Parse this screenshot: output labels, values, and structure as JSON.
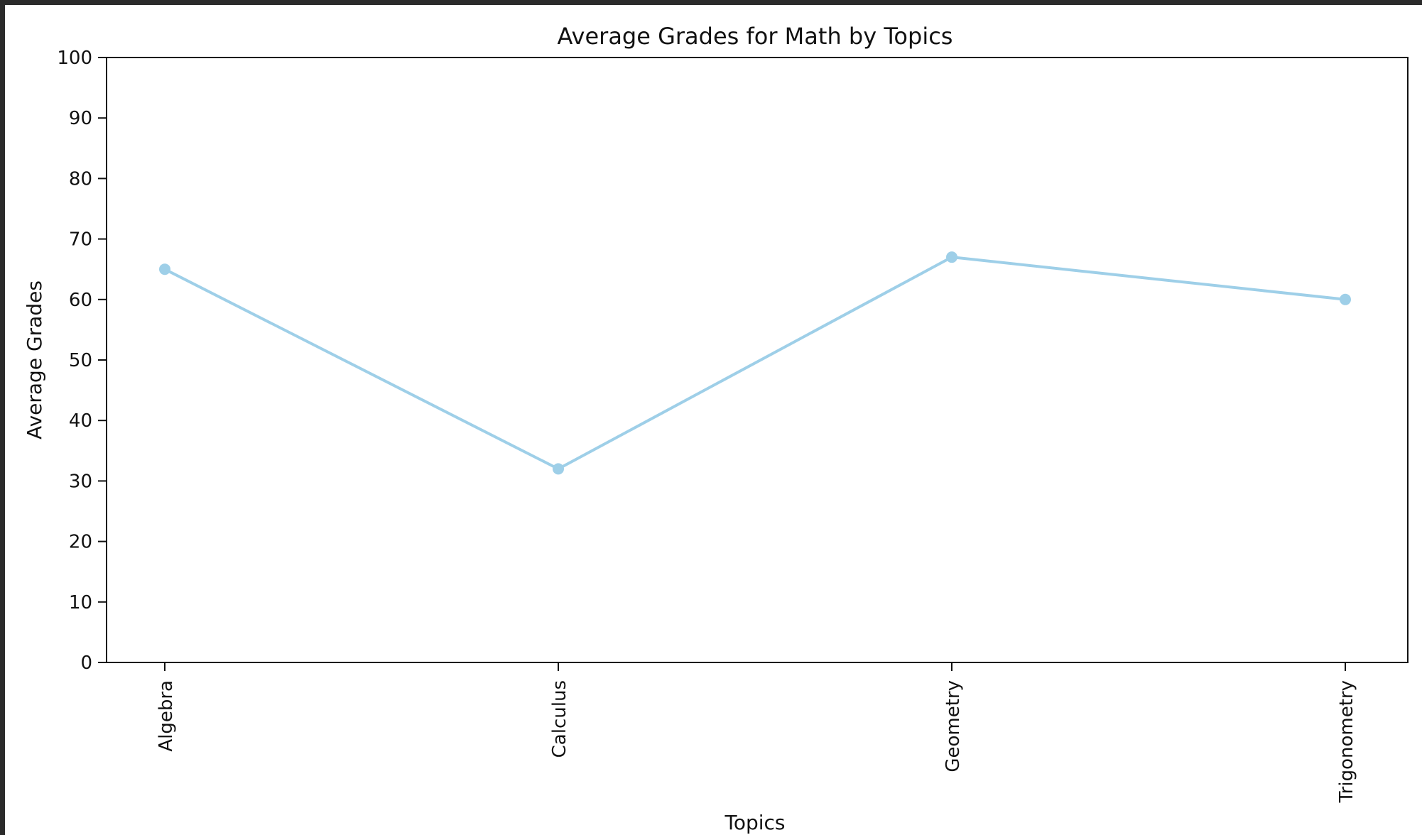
{
  "chart_data": {
    "type": "line",
    "title": "Average Grades for Math by Topics",
    "xlabel": "Topics",
    "ylabel": "Average Grades",
    "categories": [
      "Algebra",
      "Calculus",
      "Geometry",
      "Trigonometry"
    ],
    "series": [
      {
        "values": [
          65,
          32,
          67,
          60
        ]
      }
    ],
    "ylim": [
      0,
      100
    ],
    "yticks": [
      0,
      10,
      20,
      30,
      40,
      50,
      60,
      70,
      80,
      90,
      100
    ],
    "grid": false,
    "line_color": "#9ecfe8",
    "marker_color": "#9ecfe8"
  }
}
